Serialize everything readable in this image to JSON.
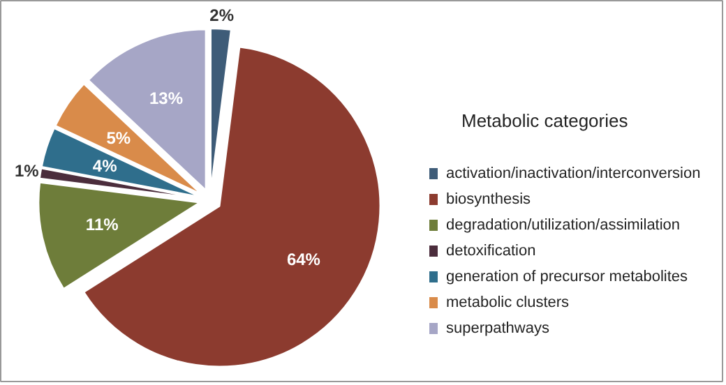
{
  "chart_data": {
    "type": "pie",
    "legend_title": "Metabolic categories",
    "legend": "right",
    "categories": [
      "activation/inactivation/interconversion",
      "biosynthesis",
      "degradation/utilization/assimilation",
      "detoxification",
      "generation of precursor metabolites",
      "metabolic clusters",
      "superpathways"
    ],
    "values": [
      2,
      64,
      11,
      1,
      4,
      5,
      13
    ],
    "value_labels": [
      "2%",
      "64%",
      "11%",
      "1%",
      "4%",
      "5%",
      "13%"
    ],
    "colors": [
      "#3e5c78",
      "#8c3b2f",
      "#6e7d3a",
      "#4b2d3c",
      "#2f6e8c",
      "#d98b4a",
      "#a6a6c6"
    ]
  }
}
